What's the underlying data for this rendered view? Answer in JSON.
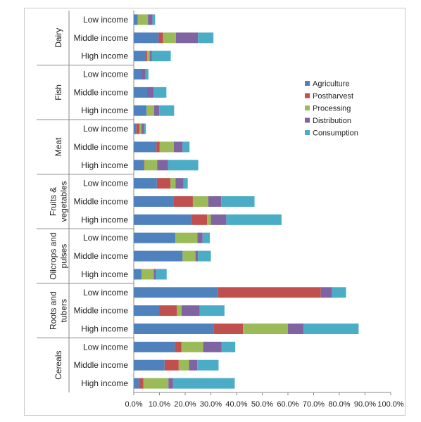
{
  "chart_data": {
    "type": "bar",
    "orientation": "horizontal",
    "stacked": true,
    "xlim": [
      0,
      1
    ],
    "x_ticks": [
      "0.0%",
      "10.0%",
      "20.0%",
      "30.0%",
      "40.0%",
      "50.0%",
      "60.0%",
      "70.0%",
      "80.0%",
      "90.0%",
      "100.0%"
    ],
    "legend_position": "right",
    "series_colors": [
      "#4f81bd",
      "#c0504d",
      "#9bbb59",
      "#8064a2",
      "#4bacc6"
    ],
    "series": [
      {
        "name": "Agriculture"
      },
      {
        "name": "Postharvest"
      },
      {
        "name": "Processing"
      },
      {
        "name": "Distribution"
      },
      {
        "name": "Consumption"
      }
    ],
    "groups": [
      {
        "label": "Dairy",
        "label_lines": [
          "Dairy"
        ],
        "bars": [
          {
            "category": "Low income",
            "values": [
              0.015,
              0.0,
              0.04,
              0.018,
              0.01
            ]
          },
          {
            "category": "Middle income",
            "values": [
              0.097,
              0.017,
              0.05,
              0.086,
              0.06
            ]
          },
          {
            "category": "High income",
            "values": [
              0.047,
              0.005,
              0.01,
              0.008,
              0.074
            ]
          }
        ]
      },
      {
        "label": "Fish",
        "label_lines": [
          "Fish"
        ],
        "bars": [
          {
            "category": "Low income",
            "values": [
              0.03,
              0.0,
              0.0,
              0.015,
              0.012
            ]
          },
          {
            "category": "Middle income",
            "values": [
              0.052,
              0.0,
              0.0,
              0.025,
              0.05
            ]
          },
          {
            "category": "High income",
            "values": [
              0.05,
              0.0,
              0.029,
              0.02,
              0.058
            ]
          }
        ]
      },
      {
        "label": "Meat",
        "label_lines": [
          "Meat"
        ],
        "bars": [
          {
            "category": "Low income",
            "values": [
              0.01,
              0.012,
              0.008,
              0.01,
              0.007
            ]
          },
          {
            "category": "Middle income",
            "values": [
              0.088,
              0.013,
              0.055,
              0.034,
              0.027
            ]
          },
          {
            "category": "High income",
            "values": [
              0.036,
              0.005,
              0.05,
              0.042,
              0.118
            ]
          }
        ]
      },
      {
        "label": "Fruits & vegetables",
        "label_lines": [
          "Fruits &",
          "vegetables"
        ],
        "bars": [
          {
            "category": "Low income",
            "values": [
              0.09,
              0.053,
              0.02,
              0.03,
              0.017
            ]
          },
          {
            "category": "Middle income",
            "values": [
              0.155,
              0.075,
              0.06,
              0.05,
              0.13
            ]
          },
          {
            "category": "High income",
            "values": [
              0.225,
              0.06,
              0.015,
              0.06,
              0.215
            ]
          }
        ]
      },
      {
        "label": "Oilcrops and pulses",
        "label_lines": [
          "Oilcrops and",
          "pulses"
        ],
        "bars": [
          {
            "category": "Low income",
            "values": [
              0.162,
              0.0,
              0.086,
              0.02,
              0.028
            ]
          },
          {
            "category": "Middle income",
            "values": [
              0.19,
              0.0,
              0.05,
              0.01,
              0.05
            ]
          },
          {
            "category": "High income",
            "values": [
              0.03,
              0.0,
              0.048,
              0.008,
              0.042
            ]
          }
        ]
      },
      {
        "label": "Roots and tubers",
        "label_lines": [
          "Roots and",
          "tubers"
        ],
        "bars": [
          {
            "category": "Low income",
            "values": [
              0.328,
              0.4,
              0.0,
              0.043,
              0.055
            ]
          },
          {
            "category": "Middle income",
            "values": [
              0.1,
              0.068,
              0.018,
              0.07,
              0.097
            ]
          },
          {
            "category": "High income",
            "values": [
              0.31,
              0.115,
              0.175,
              0.061,
              0.214
            ]
          }
        ]
      },
      {
        "label": "Cereals",
        "label_lines": [
          "Cereals"
        ],
        "bars": [
          {
            "category": "Low income",
            "values": [
              0.16,
              0.025,
              0.085,
              0.072,
              0.053
            ]
          },
          {
            "category": "Middle income",
            "values": [
              0.12,
              0.055,
              0.04,
              0.032,
              0.083
            ]
          },
          {
            "category": "High income",
            "values": [
              0.02,
              0.017,
              0.098,
              0.018,
              0.24
            ]
          }
        ]
      }
    ]
  }
}
